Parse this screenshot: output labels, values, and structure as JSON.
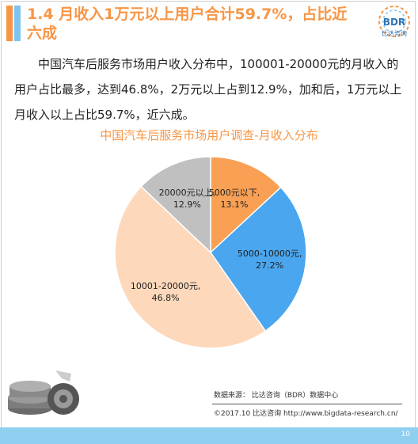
{
  "header": {
    "title": "1.4  月收入1万元以上用户合计59.7%，占比近六成",
    "logo_text": "BDR",
    "logo_sub": "比达咨询"
  },
  "summary_text": "中国汽车后服务市场用户收入分布中，100001-20000元的月收入的用户占比最多，达到46.8%，2万元以上占到12.9%，加和后，1万元以上月收入以上占比59.7%，近六成。",
  "chart_data": {
    "type": "pie",
    "title": "中国汽车后服务市场用户调查-月收入分布",
    "start_angle_deg": 0,
    "direction": "clockwise",
    "slices": [
      {
        "label": "5000元以下,",
        "value": 13.1,
        "value_label": "13.1%",
        "color": "#f9a054"
      },
      {
        "label": "5000-10000元,",
        "value": 27.2,
        "value_label": "27.2%",
        "color": "#4aa6ee"
      },
      {
        "label": "10001-20000元,",
        "value": 46.8,
        "value_label": "46.8%",
        "color": "#fdd8bb"
      },
      {
        "label": "20000元以上,",
        "value": 12.9,
        "value_label": "12.9%",
        "color": "#c0c0c0"
      }
    ]
  },
  "footer": {
    "source": "数据来源：  比达咨询（BDR）数据中心",
    "copyright": "©2017.10    比达咨询 http://www.bigdata-research.cn/",
    "page_number": "10"
  }
}
